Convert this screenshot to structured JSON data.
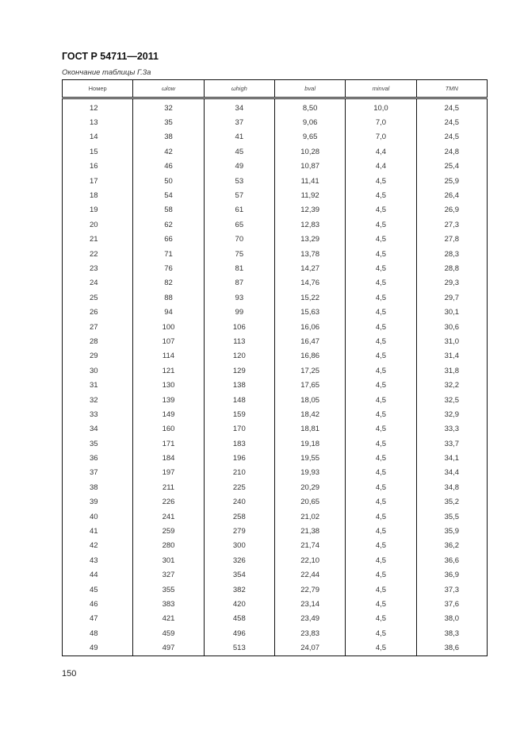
{
  "header": {
    "doc_code": "ГОСТ Р 54711—2011"
  },
  "caption": "Окончание таблицы Г.3а",
  "table": {
    "columns": [
      "Номер",
      "ωlow",
      "ωhigh",
      "bval",
      "minval",
      "TMN"
    ],
    "rows": [
      [
        "12",
        "32",
        "34",
        "8,50",
        "10,0",
        "24,5"
      ],
      [
        "13",
        "35",
        "37",
        "9,06",
        "7,0",
        "24,5"
      ],
      [
        "14",
        "38",
        "41",
        "9,65",
        "7,0",
        "24,5"
      ],
      [
        "15",
        "42",
        "45",
        "10,28",
        "4,4",
        "24,8"
      ],
      [
        "16",
        "46",
        "49",
        "10,87",
        "4,4",
        "25,4"
      ],
      [
        "17",
        "50",
        "53",
        "11,41",
        "4,5",
        "25,9"
      ],
      [
        "18",
        "54",
        "57",
        "11,92",
        "4,5",
        "26,4"
      ],
      [
        "19",
        "58",
        "61",
        "12,39",
        "4,5",
        "26,9"
      ],
      [
        "20",
        "62",
        "65",
        "12,83",
        "4,5",
        "27,3"
      ],
      [
        "21",
        "66",
        "70",
        "13,29",
        "4,5",
        "27,8"
      ],
      [
        "22",
        "71",
        "75",
        "13,78",
        "4,5",
        "28,3"
      ],
      [
        "23",
        "76",
        "81",
        "14,27",
        "4,5",
        "28,8"
      ],
      [
        "24",
        "82",
        "87",
        "14,76",
        "4,5",
        "29,3"
      ],
      [
        "25",
        "88",
        "93",
        "15,22",
        "4,5",
        "29,7"
      ],
      [
        "26",
        "94",
        "99",
        "15,63",
        "4,5",
        "30,1"
      ],
      [
        "27",
        "100",
        "106",
        "16,06",
        "4,5",
        "30,6"
      ],
      [
        "28",
        "107",
        "113",
        "16,47",
        "4,5",
        "31,0"
      ],
      [
        "29",
        "114",
        "120",
        "16,86",
        "4,5",
        "31,4"
      ],
      [
        "30",
        "121",
        "129",
        "17,25",
        "4,5",
        "31,8"
      ],
      [
        "31",
        "130",
        "138",
        "17,65",
        "4,5",
        "32,2"
      ],
      [
        "32",
        "139",
        "148",
        "18,05",
        "4,5",
        "32,5"
      ],
      [
        "33",
        "149",
        "159",
        "18,42",
        "4,5",
        "32,9"
      ],
      [
        "34",
        "160",
        "170",
        "18,81",
        "4,5",
        "33,3"
      ],
      [
        "35",
        "171",
        "183",
        "19,18",
        "4,5",
        "33,7"
      ],
      [
        "36",
        "184",
        "196",
        "19,55",
        "4,5",
        "34,1"
      ],
      [
        "37",
        "197",
        "210",
        "19,93",
        "4,5",
        "34,4"
      ],
      [
        "38",
        "211",
        "225",
        "20,29",
        "4,5",
        "34,8"
      ],
      [
        "39",
        "226",
        "240",
        "20,65",
        "4,5",
        "35,2"
      ],
      [
        "40",
        "241",
        "258",
        "21,02",
        "4,5",
        "35,5"
      ],
      [
        "41",
        "259",
        "279",
        "21,38",
        "4,5",
        "35,9"
      ],
      [
        "42",
        "280",
        "300",
        "21,74",
        "4,5",
        "36,2"
      ],
      [
        "43",
        "301",
        "326",
        "22,10",
        "4,5",
        "36,6"
      ],
      [
        "44",
        "327",
        "354",
        "22,44",
        "4,5",
        "36,9"
      ],
      [
        "45",
        "355",
        "382",
        "22,79",
        "4,5",
        "37,3"
      ],
      [
        "46",
        "383",
        "420",
        "23,14",
        "4,5",
        "37,6"
      ],
      [
        "47",
        "421",
        "458",
        "23,49",
        "4,5",
        "38,0"
      ],
      [
        "48",
        "459",
        "496",
        "23,83",
        "4,5",
        "38,3"
      ],
      [
        "49",
        "497",
        "513",
        "24,07",
        "4,5",
        "38,6"
      ]
    ]
  },
  "page_number": "150"
}
